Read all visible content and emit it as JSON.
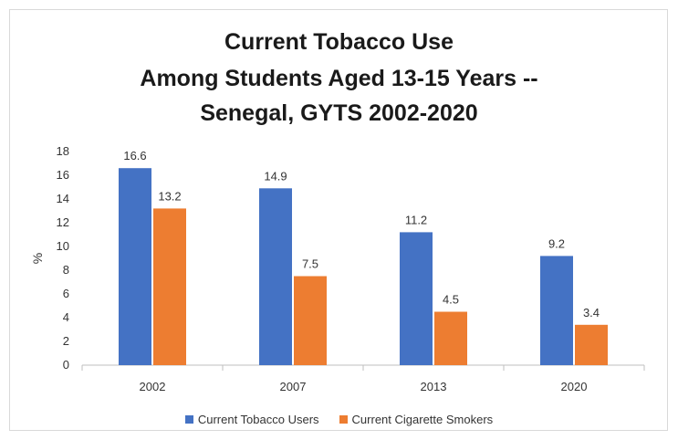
{
  "chart_data": {
    "type": "bar",
    "title": [
      "Current Tobacco Use",
      "Among Students Aged 13-15 Years --",
      "Senegal, GYTS 2002-2020"
    ],
    "categories": [
      "2002",
      "2007",
      "2013",
      "2020"
    ],
    "series": [
      {
        "name": "Current Tobacco Users",
        "values": [
          16.6,
          14.9,
          11.2,
          9.2
        ],
        "color": "#4472C4"
      },
      {
        "name": "Current Cigarette Smokers",
        "values": [
          13.2,
          7.5,
          4.5,
          3.4
        ],
        "color": "#ED7D31"
      }
    ],
    "ylabel": "%",
    "xlabel": "",
    "ylim": [
      0,
      18
    ],
    "yticks": [
      "0",
      "2",
      "4",
      "6",
      "8",
      "10",
      "12",
      "14",
      "16",
      "18"
    ],
    "grid": false,
    "legend_position": "bottom"
  }
}
